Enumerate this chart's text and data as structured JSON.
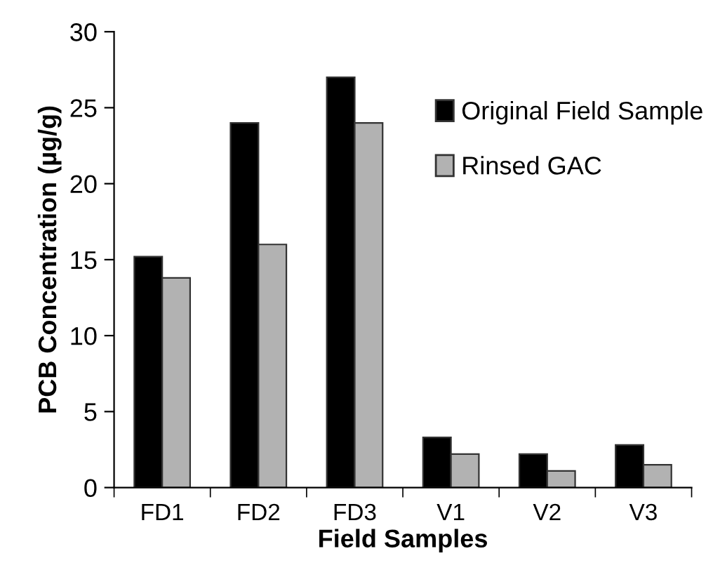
{
  "chart_data": {
    "type": "bar",
    "xlabel": "Field Samples",
    "ylabel": "PCB Concentration (µg/g)",
    "categories": [
      "FD1",
      "FD2",
      "FD3",
      "V1",
      "V2",
      "V3"
    ],
    "series": [
      {
        "name": "Original Field Sample",
        "color": "#000000",
        "values": [
          15.2,
          24,
          27,
          3.3,
          2.2,
          2.8
        ]
      },
      {
        "name": "Rinsed GAC",
        "color": "#b2b2b2",
        "values": [
          13.8,
          16,
          24,
          2.2,
          1.1,
          1.5
        ]
      }
    ],
    "ylim": [
      0,
      30
    ],
    "yticks": [
      0,
      5,
      10,
      15,
      20,
      25,
      30
    ],
    "legend": "top right",
    "grid": false
  }
}
